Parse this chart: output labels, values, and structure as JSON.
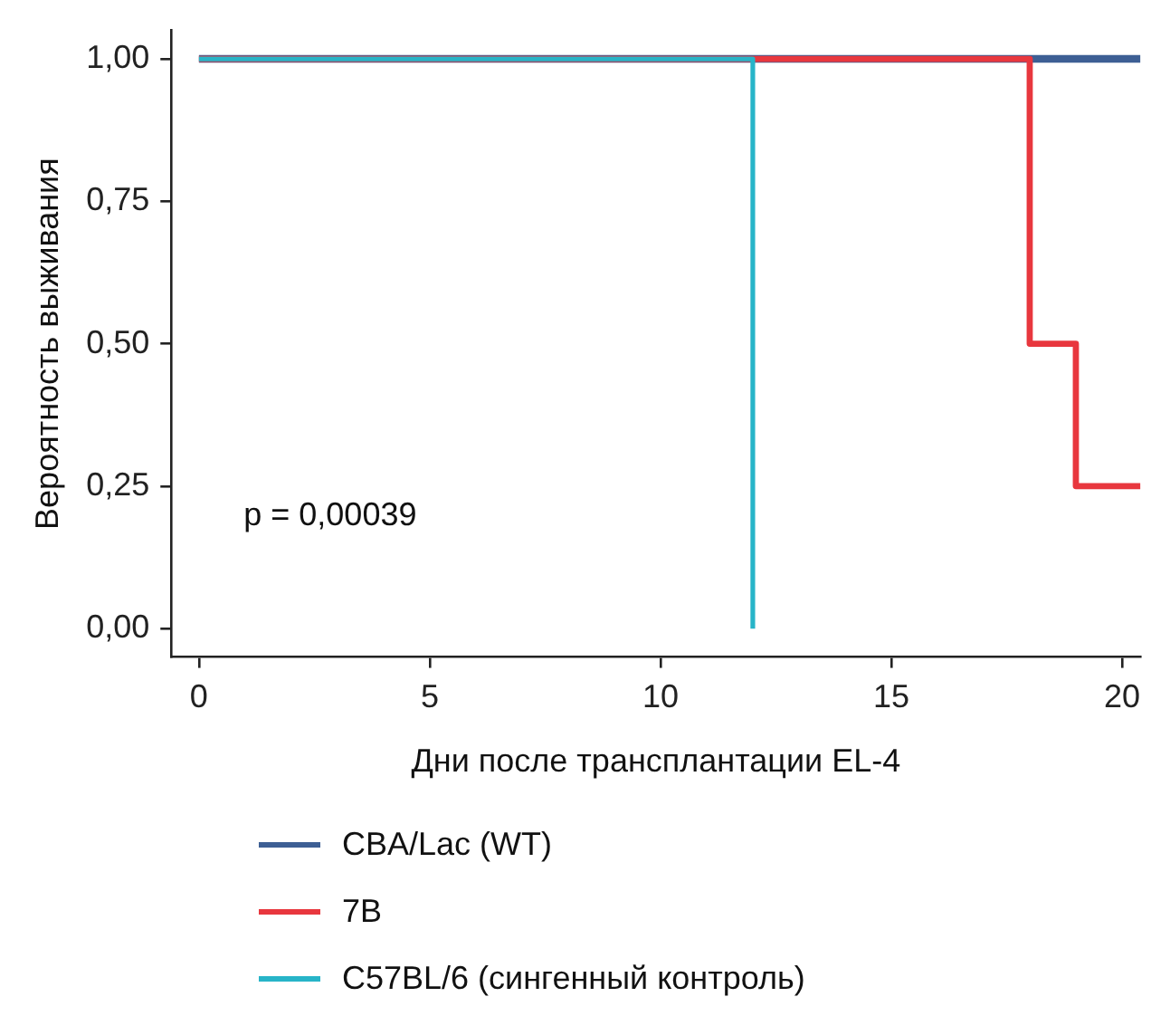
{
  "chart_data": {
    "type": "step",
    "xlabel": "Дни после трансплантации EL-4",
    "ylabel": "Вероятность выживания",
    "xlim": [
      -0.6,
      20.4
    ],
    "xticks": [
      0,
      5,
      10,
      15,
      20
    ],
    "ylim": [
      -0.05,
      1.05
    ],
    "yticks": [
      {
        "value": 0,
        "label": "0,00"
      },
      {
        "value": 0.25,
        "label": "0,25"
      },
      {
        "value": 0.5,
        "label": "0,50"
      },
      {
        "value": 0.75,
        "label": "0,75"
      },
      {
        "value": 1,
        "label": "1,00"
      }
    ],
    "series": [
      {
        "name": "CBA/Lac (WT)",
        "color": "#3d5f94",
        "x": [
          0,
          20.4
        ],
        "values": [
          1,
          1
        ]
      },
      {
        "name": "7B",
        "color": "#e8373e",
        "x": [
          0,
          18,
          19,
          20.4
        ],
        "values": [
          1,
          0.5,
          0.25,
          0.25
        ]
      },
      {
        "name": "C57BL/6 (сингенный контроль)",
        "color": "#27b4c8",
        "x": [
          0,
          12
        ],
        "values": [
          1,
          0
        ]
      }
    ],
    "annotations": [
      "p = 0,00039"
    ],
    "grid": false,
    "legend": "bottom",
    "marker": "none",
    "line_style": "solid"
  }
}
